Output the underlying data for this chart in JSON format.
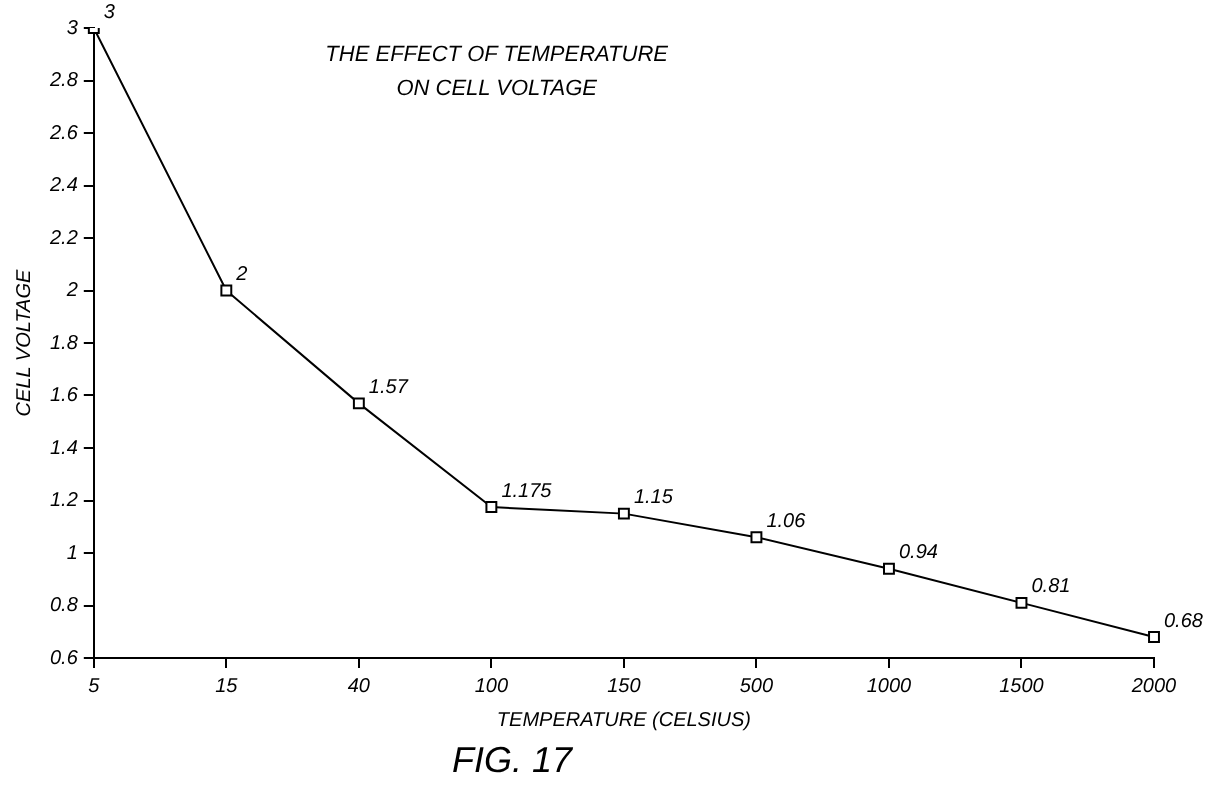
{
  "chart_data": {
    "type": "line",
    "title": "THE EFFECT OF TEMPERATURE\nON CELL VOLTAGE",
    "xlabel": "TEMPERATURE (CELSIUS)",
    "ylabel": "CELL VOLTAGE",
    "categories": [
      "5",
      "15",
      "40",
      "100",
      "150",
      "500",
      "1000",
      "1500",
      "2000"
    ],
    "values": [
      3,
      2,
      1.57,
      1.175,
      1.15,
      1.06,
      0.94,
      0.81,
      0.68
    ],
    "color": "#000000",
    "ylim": [
      0.6,
      3
    ],
    "yticks": [
      0.6,
      0.8,
      1,
      1.2,
      1.4,
      1.6,
      1.8,
      2,
      2.2,
      2.4,
      2.6,
      2.8,
      3
    ],
    "grid": false,
    "legend": false,
    "marker": "square",
    "line_style": "solid",
    "data_labels": true,
    "annotations": [
      "FIG. 17"
    ]
  }
}
